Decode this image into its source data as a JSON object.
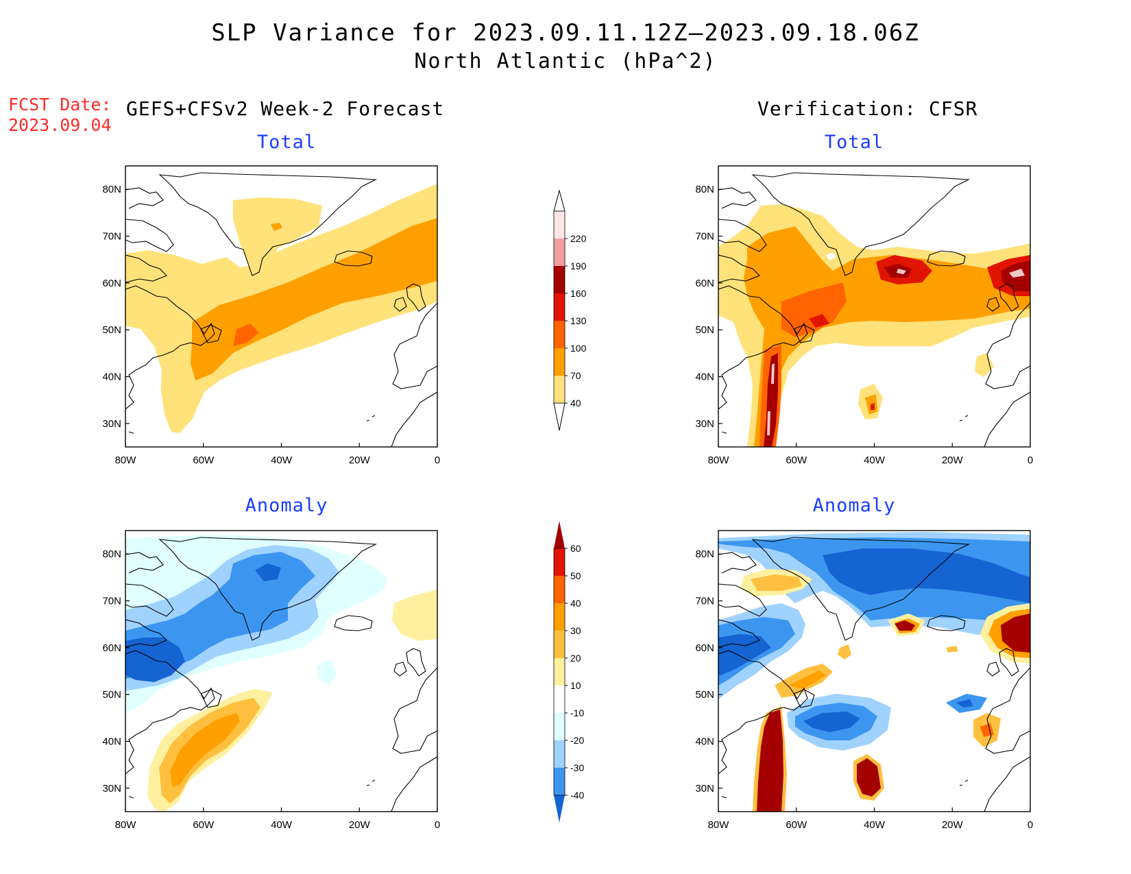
{
  "title": {
    "line1": "SLP Variance for 2023.09.11.12Z–2023.09.18.06Z",
    "line2": "North Atlantic (hPa^2)"
  },
  "forecast_date": {
    "label": "FCST Date:",
    "value": "2023.09.04"
  },
  "columns": {
    "left_header": "GEFS+CFSv2 Week-2 Forecast",
    "right_header": "Verification: CFSR"
  },
  "panel_titles": {
    "forecast_total": "Total",
    "verification_total": "Total",
    "forecast_anomaly": "Anomaly",
    "verification_anomaly": "Anomaly"
  },
  "map_axes": {
    "lon_ticks": [
      "80W",
      "60W",
      "40W",
      "20W",
      "0"
    ],
    "lat_ticks": [
      "80N",
      "70N",
      "60N",
      "50N",
      "40N",
      "30N"
    ],
    "lon_range": [
      -80,
      0
    ],
    "lat_range": [
      25,
      85
    ]
  },
  "colorbars": {
    "total": {
      "levels": [
        "40",
        "70",
        "100",
        "130",
        "160",
        "190",
        "220"
      ],
      "colors": [
        "#ffe27a",
        "#ffa000",
        "#ff6400",
        "#e11400",
        "#a50000",
        "#f0a0a0",
        "#ffe6e6"
      ]
    },
    "anomaly": {
      "levels": [
        "60",
        "50",
        "40",
        "30",
        "20",
        "10",
        "-10",
        "-20",
        "-30",
        "-40"
      ],
      "colors": [
        "#a50000",
        "#e11400",
        "#ff6400",
        "#ffa000",
        "#ffc040",
        "#fff0a0",
        "#ffffff",
        "#e0ffff",
        "#a0d2ff",
        "#3c96f0",
        "#1464d2"
      ]
    }
  }
}
